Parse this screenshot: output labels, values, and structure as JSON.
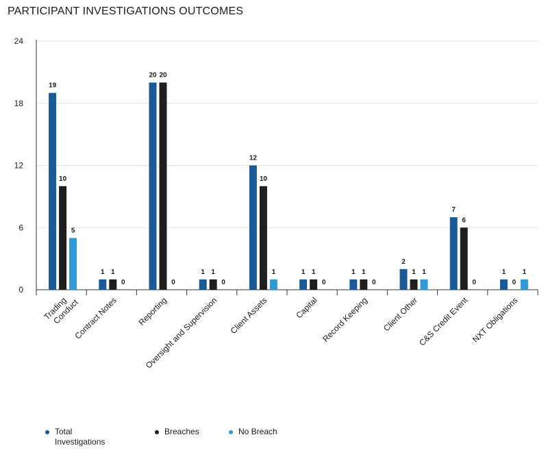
{
  "chart_data": {
    "type": "bar",
    "title": "PARTICIPANT INVESTIGATIONS OUTCOMES",
    "xlabel": "",
    "ylabel": "",
    "ylim": [
      0,
      24
    ],
    "yticks": [
      0,
      6,
      12,
      18,
      24
    ],
    "grid": true,
    "legend_position": "bottom",
    "categories": [
      [
        "Trading",
        "Conduct"
      ],
      [
        "Contract Notes"
      ],
      [
        "Reporting"
      ],
      [
        "Oversight and Supervision"
      ],
      [
        "Client Assets"
      ],
      [
        "Capital"
      ],
      [
        "Record Keeping"
      ],
      [
        "Client Other"
      ],
      [
        "C&S Credit Event"
      ],
      [
        "NXT Obligations"
      ]
    ],
    "series": [
      {
        "name": "Total Investigations",
        "color": "#1a5a96",
        "values": [
          19,
          1,
          20,
          1,
          12,
          1,
          1,
          2,
          7,
          1
        ]
      },
      {
        "name": "Breaches",
        "color": "#1f1f1f",
        "values": [
          10,
          1,
          20,
          1,
          10,
          1,
          1,
          1,
          6,
          0
        ]
      },
      {
        "name": "No Breach",
        "color": "#2f9ad6",
        "values": [
          5,
          0,
          0,
          0,
          1,
          0,
          0,
          1,
          0,
          1
        ]
      }
    ]
  },
  "legend": {
    "items": [
      {
        "label": "Total Investigations",
        "color": "#1a5a96"
      },
      {
        "label": "Breaches",
        "color": "#1f1f1f"
      },
      {
        "label": "No Breach",
        "color": "#2f9ad6"
      }
    ]
  }
}
